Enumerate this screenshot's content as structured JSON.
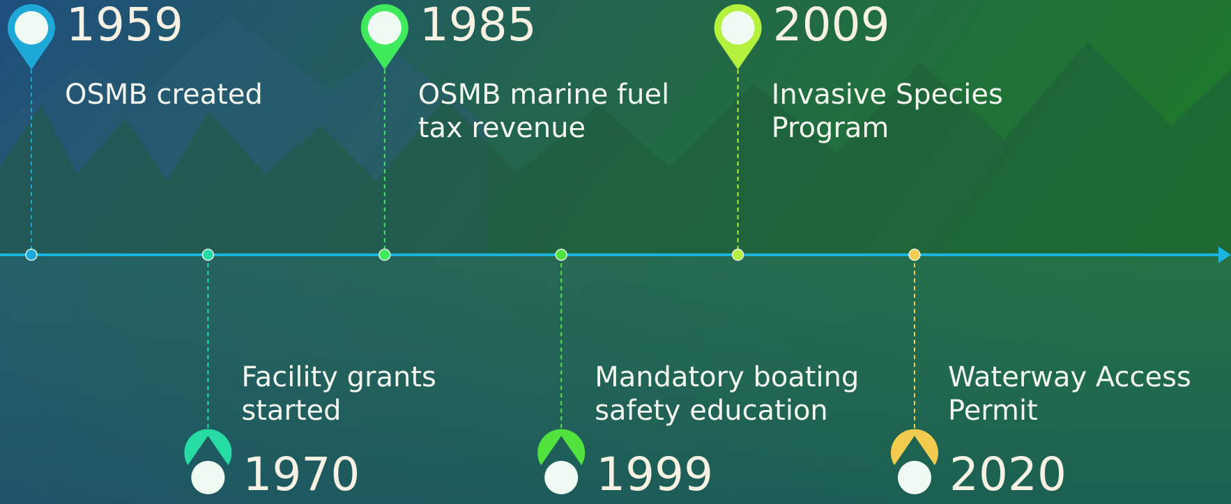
{
  "events": [
    {
      "year": "1959",
      "lines": [
        "OSMB created"
      ],
      "color": "#1ea8d8"
    },
    {
      "year": "1970",
      "lines": [
        "Facility grants",
        "started"
      ],
      "color": "#26dba4"
    },
    {
      "year": "1985",
      "lines": [
        "OSMB marine fuel",
        "tax revenue"
      ],
      "color": "#3eea5c"
    },
    {
      "year": "1999",
      "lines": [
        "Mandatory boating",
        "safety education"
      ],
      "color": "#52e23e"
    },
    {
      "year": "2009",
      "lines": [
        "Invasive Species",
        "Program"
      ],
      "color": "#b4f03e"
    },
    {
      "year": "2020",
      "lines": [
        "Waterway Access",
        "Permit"
      ],
      "color": "#f3cb4e"
    }
  ]
}
